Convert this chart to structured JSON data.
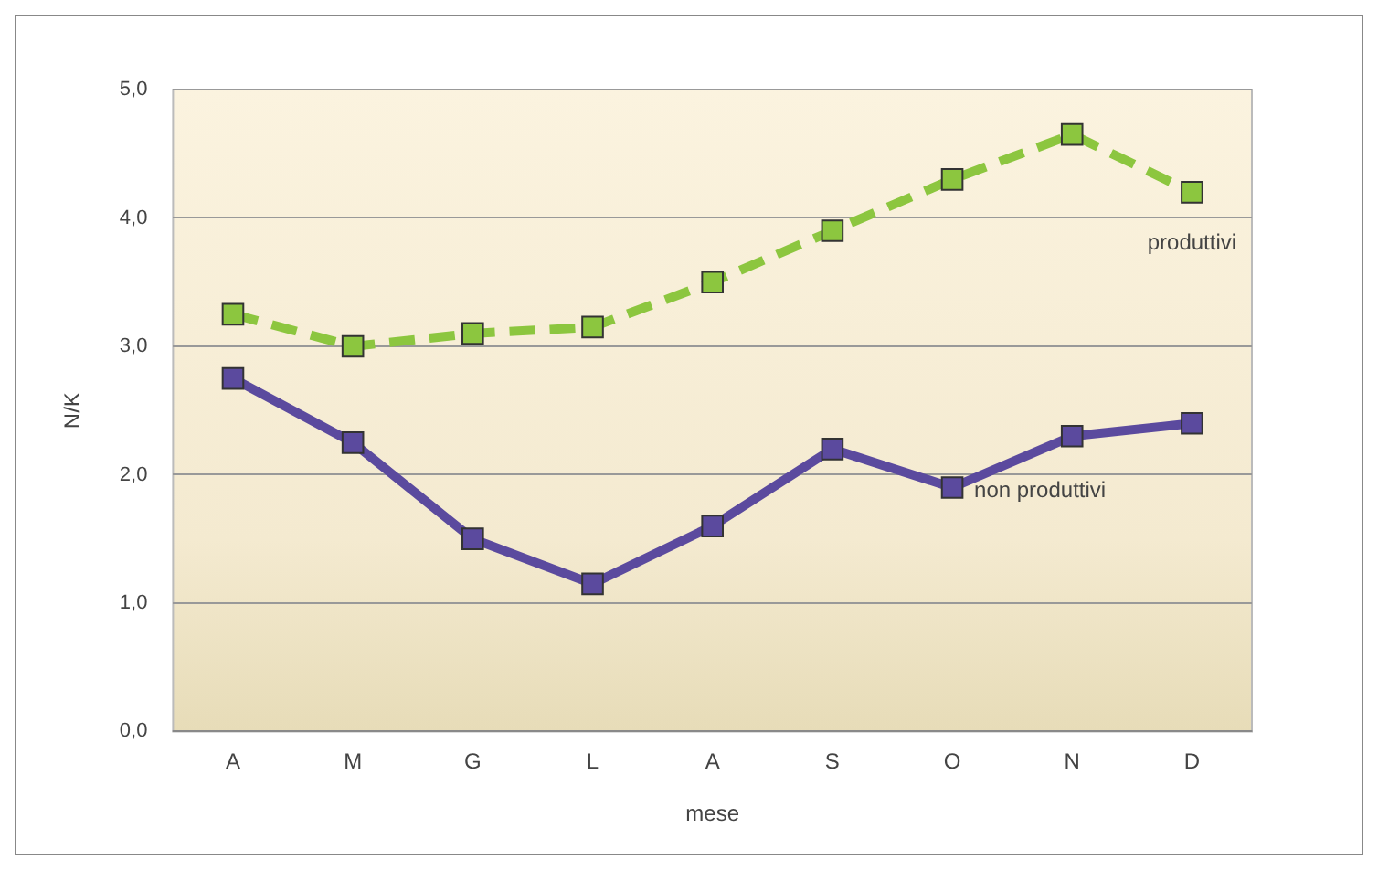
{
  "chart_data": {
    "type": "line",
    "xlabel": "mese",
    "ylabel": "N/K",
    "categories": [
      "A",
      "M",
      "G",
      "L",
      "A",
      "S",
      "O",
      "N",
      "D"
    ],
    "series": [
      {
        "name": "produttivi",
        "color": "#8cc63f",
        "line_style": "dashed",
        "values": [
          3.25,
          3.0,
          3.1,
          3.15,
          3.5,
          3.9,
          4.3,
          4.65,
          4.2
        ]
      },
      {
        "name": "non produttivi",
        "color": "#5b4a9e",
        "line_style": "solid",
        "values": [
          2.75,
          2.25,
          1.5,
          1.15,
          1.6,
          2.2,
          1.9,
          2.3,
          2.4
        ]
      }
    ],
    "ylim": [
      0,
      5
    ],
    "yticks": [
      {
        "value": 0,
        "label": "0,0"
      },
      {
        "value": 1,
        "label": "1,0"
      },
      {
        "value": 2,
        "label": "2,0"
      },
      {
        "value": 3,
        "label": "3,0"
      },
      {
        "value": 4,
        "label": "4,0"
      },
      {
        "value": 5,
        "label": "5,0"
      }
    ],
    "grid": "y",
    "legend": false,
    "marker": "square"
  }
}
